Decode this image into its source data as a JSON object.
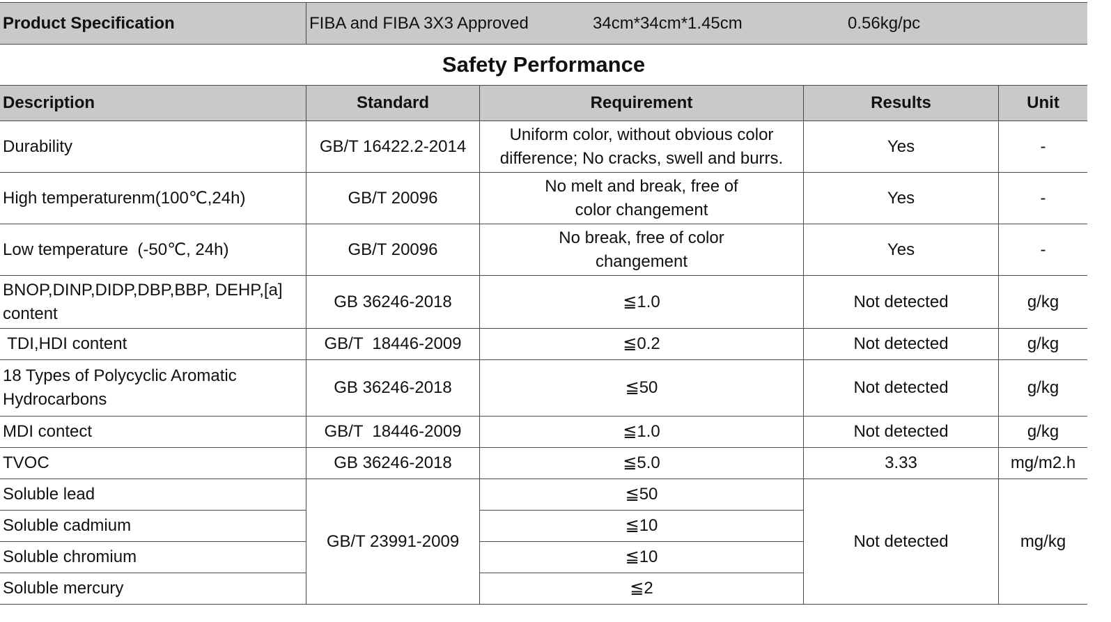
{
  "spec_row": {
    "label": "Product Specification",
    "approval": "FIBA and FIBA 3X3 Approved",
    "size": "34cm*34cm*1.45cm",
    "weight": "0.56kg/pc"
  },
  "section_title": "Safety Performance",
  "headers": {
    "description": "Description",
    "standard": "Standard",
    "requirement": "Requirement",
    "results": "Results",
    "unit": "Unit"
  },
  "rows": [
    {
      "description": "Durability",
      "standard": "GB/T 16422.2-2014",
      "requirement": "Uniform color, without obvious color difference; No cracks, swell and burrs.",
      "results": "Yes",
      "unit": "-"
    },
    {
      "description": "High temperaturenm(100℃,24h)",
      "standard": "GB/T 20096",
      "requirement": "No melt and break, free of color changement",
      "results": "Yes",
      "unit": "-"
    },
    {
      "description": "Low temperature  (-50℃, 24h)",
      "standard": "GB/T 20096",
      "requirement": "No break, free of color changement",
      "results": "Yes",
      "unit": "-"
    },
    {
      "description": "BNOP,DINP,DIDP,DBP,BBP, DEHP,[a] content",
      "standard": "GB 36246-2018",
      "requirement": "≦1.0",
      "results": "Not detected",
      "unit": "g/kg"
    },
    {
      "description": " TDI,HDI content",
      "standard": "GB/T  18446-2009",
      "requirement": "≦0.2",
      "results": "Not detected",
      "unit": "g/kg"
    },
    {
      "description": "18 Types of Polycyclic Aromatic Hydrocarbons",
      "standard": "GB 36246-2018",
      "requirement": "≦50",
      "results": "Not detected",
      "unit": "g/kg"
    },
    {
      "description": "MDI contect",
      "standard": "GB/T  18446-2009",
      "requirement": "≦1.0",
      "results": "Not detected",
      "unit": "g/kg"
    },
    {
      "description": "TVOC",
      "standard": "GB 36246-2018",
      "requirement": "≦5.0",
      "results": "3.33",
      "unit": "mg/m2.h"
    }
  ],
  "soluble_group": {
    "standard": "GB/T 23991-2009",
    "results": "Not detected",
    "unit": "mg/kg",
    "items": [
      {
        "description": "Soluble lead",
        "requirement": "≦50"
      },
      {
        "description": "Soluble cadmium",
        "requirement": "≦10"
      },
      {
        "description": "Soluble chromium",
        "requirement": "≦10"
      },
      {
        "description": "Soluble mercury",
        "requirement": "≦2"
      }
    ]
  },
  "colors": {
    "header_fill": "#c9c9c9",
    "border": "#4a4a4a"
  }
}
